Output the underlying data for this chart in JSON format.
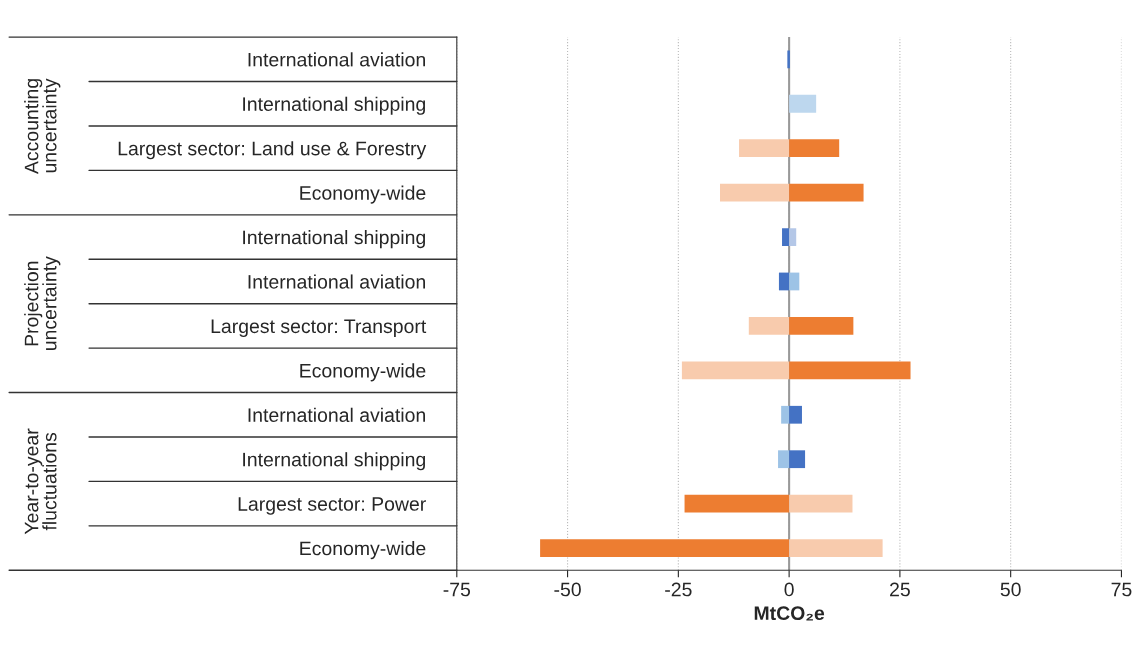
{
  "chart_data": {
    "type": "bar",
    "orientation": "horizontal",
    "stacked": true,
    "categories": [
      "International aviation",
      "International shipping",
      "Largest sector: Land use & Forestry",
      "Economy-wide",
      "International shipping",
      "International aviation",
      "Largest sector: Transport",
      "Economy-wide",
      "International aviation",
      "International shipping",
      "Largest sector: Power",
      "Economy-wide"
    ],
    "series": [
      {
        "colors": [
          "#4472c4",
          null,
          "#f8cbad",
          "#f8cbad",
          "#4472c4",
          "#4472c4",
          "#f8cbad",
          "#f8cbad",
          "#9dc3e6",
          "#9dc3e6",
          "#ed7d31",
          "#ed7d31"
        ],
        "values": [
          -0.4,
          null,
          -11.3,
          -15.6,
          -1.6,
          -2.3,
          -9.1,
          -24.2,
          -1.8,
          -2.5,
          -23.6,
          -56.2
        ]
      },
      {
        "colors": [
          "#4472c4",
          "#bdd7ee",
          "#ed7d31",
          "#ed7d31",
          "#b4c7e7",
          "#9dc3e6",
          "#ed7d31",
          "#ed7d31",
          "#4472c4",
          "#4472c4",
          "#f8cbad",
          "#f8cbad"
        ],
        "values": [
          0.2,
          6.1,
          11.3,
          16.8,
          1.6,
          2.3,
          14.5,
          27.4,
          2.9,
          3.6,
          14.3,
          21.1
        ]
      }
    ],
    "xlim": [
      -75,
      75
    ],
    "xticks": [
      -75,
      -50,
      -25,
      0,
      25,
      50,
      75
    ],
    "xlabel": "MtCO₂e",
    "grid": "x",
    "legend": false,
    "annotations": [
      "Accounting\nuncertainty",
      "Projection\nuncertainty",
      "Year-to-year\nfluctuations"
    ]
  }
}
